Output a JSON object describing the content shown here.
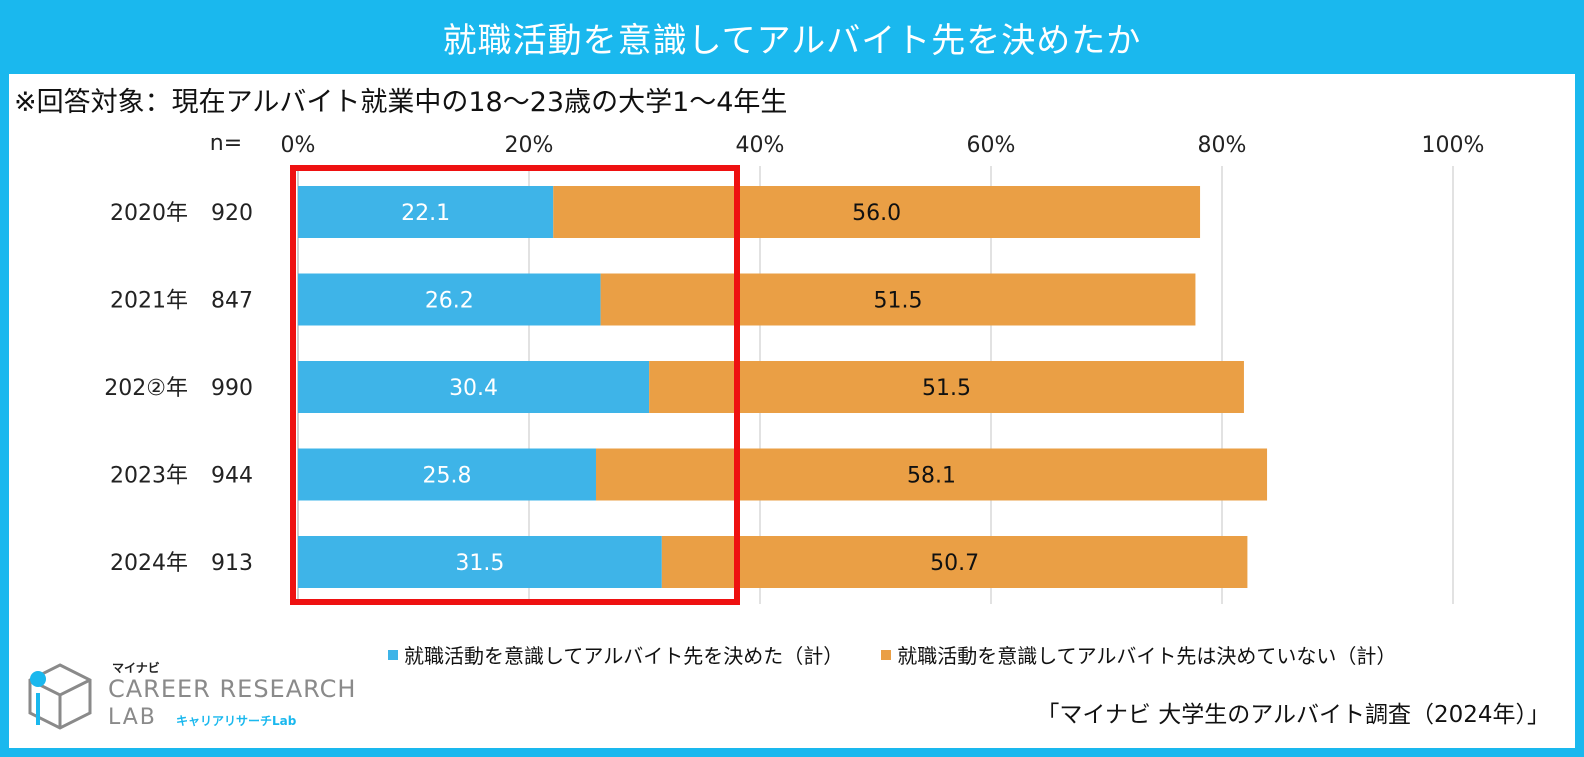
{
  "header": {
    "title": "就職活動を意識してアルバイト先を決めたか",
    "subtitle": "※回答対象：現在アルバイト就業中の18～23歳の大学1～4年生"
  },
  "chart_data": {
    "type": "bar",
    "orientation": "horizontal",
    "stacked": true,
    "n_label": "n=",
    "categories": [
      "2020年",
      "2021年",
      "202②年",
      "2023年",
      "2024年"
    ],
    "n": [
      "920",
      "847",
      "990",
      "944",
      "913"
    ],
    "series": [
      {
        "name": "就職活動を意識してアルバイト先を決めた（計）",
        "values": [
          22.1,
          26.2,
          30.4,
          25.8,
          31.5
        ],
        "color": "#3eb4e8"
      },
      {
        "name": "就職活動を意識してアルバイト先は決めていない（計）",
        "values": [
          56.0,
          51.5,
          51.5,
          58.1,
          50.7
        ],
        "color": "#ea9f45"
      }
    ],
    "xlim": [
      0,
      100
    ],
    "x_ticks": [
      "0%",
      "20%",
      "40%",
      "60%",
      "80%",
      "100%"
    ],
    "grid": true,
    "legend_position": "bottom",
    "highlight_color": "#ee1111"
  },
  "source": "「マイナビ 大学生のアルバイト調査（2024年）」",
  "logo": {
    "brand": "マイナビ",
    "line1": "CAREER RESEARCH",
    "line2": "LAB",
    "line2_sub": "キャリアリサーチLab"
  }
}
